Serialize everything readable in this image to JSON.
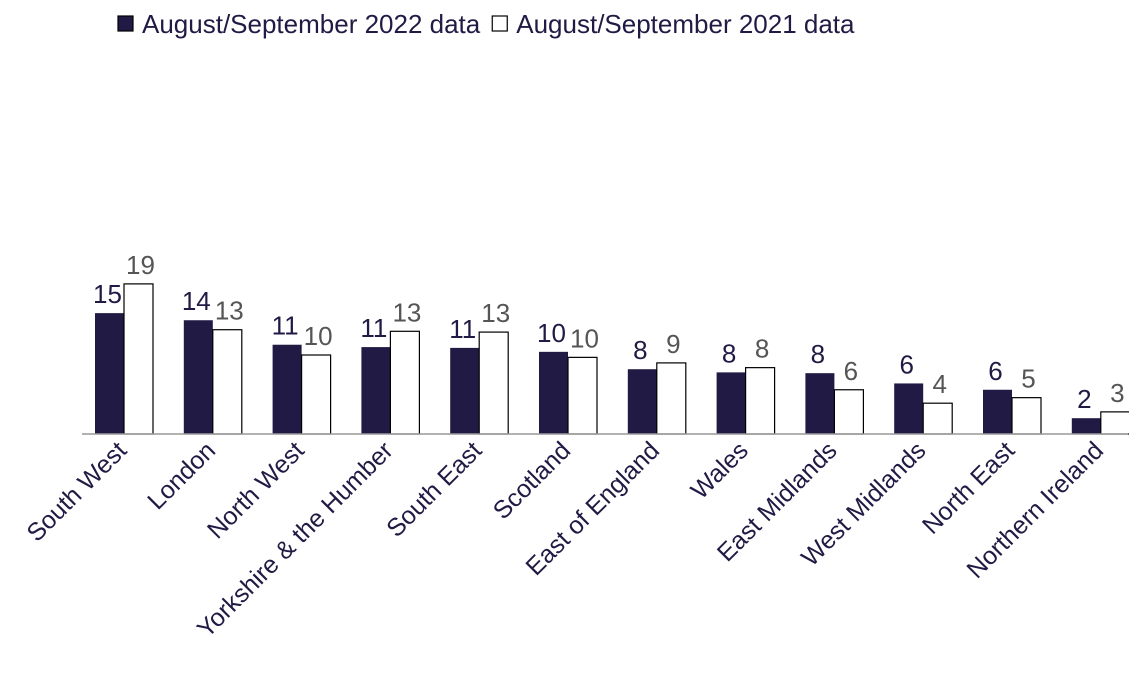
{
  "chart_data": {
    "type": "bar",
    "categories": [
      "South West",
      "London",
      "North West",
      "Yorkshire & the Humber",
      "South East",
      "Scotland",
      "East of England",
      "Wales",
      "East Midlands",
      "West Midlands",
      "North East",
      "Northern Ireland"
    ],
    "series": [
      {
        "name": "August/September 2022 data",
        "color": "#211a44",
        "values": [
          15.3,
          14.4,
          11.3,
          11.0,
          10.9,
          10.4,
          8.2,
          7.8,
          7.7,
          6.4,
          5.6,
          2.0
        ],
        "value_labels": [
          "15",
          "14",
          "11",
          "11",
          "11",
          "10",
          "8",
          "8",
          "8",
          "6",
          "6",
          "2"
        ]
      },
      {
        "name": "August/September 2021 data",
        "color": "#ffffff",
        "values": [
          19.0,
          13.2,
          10.0,
          13.0,
          12.9,
          9.7,
          9.0,
          8.4,
          5.6,
          3.9,
          4.6,
          2.8
        ],
        "value_labels": [
          "19",
          "13",
          "10",
          "13",
          "13",
          "10",
          "9",
          "8",
          "6",
          "4",
          "5",
          "3"
        ]
      }
    ],
    "ylim": [
      0,
      20
    ]
  }
}
